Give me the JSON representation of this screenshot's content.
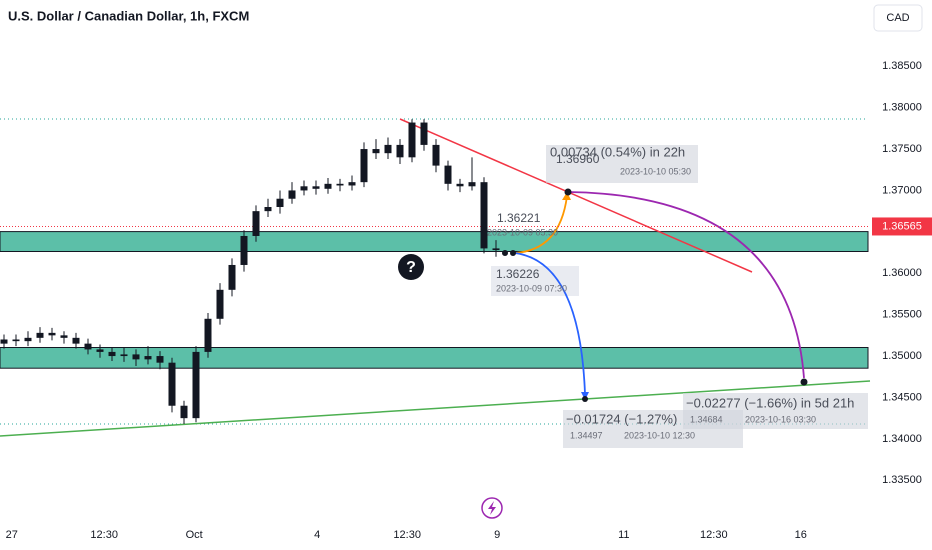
{
  "chart_data": {
    "type": "candlestick",
    "title": "U.S. Dollar / Canadian Dollar, 1h, FXCM",
    "currency": "CAD",
    "up_color": "#131722",
    "down_color": "#131722",
    "x": [
      0,
      2,
      4,
      6,
      8,
      10,
      12,
      14,
      16,
      18,
      20,
      22,
      24,
      26,
      28,
      30,
      32,
      34,
      36,
      38,
      40,
      42,
      44,
      46,
      48,
      50,
      52,
      54,
      56,
      58,
      60,
      62,
      64,
      66,
      68,
      70,
      72,
      74,
      76,
      78,
      80,
      82
    ],
    "open": [
      1.3515,
      1.352,
      1.3518,
      1.3522,
      1.3528,
      1.3525,
      1.3522,
      1.3515,
      1.3508,
      1.3505,
      1.35,
      1.3502,
      1.3496,
      1.35,
      1.3492,
      1.344,
      1.3425,
      1.3505,
      1.3545,
      1.358,
      1.361,
      1.3645,
      1.3675,
      1.368,
      1.369,
      1.37,
      1.3705,
      1.3702,
      1.3708,
      1.3706,
      1.371,
      1.375,
      1.3745,
      1.3755,
      1.374,
      1.3782,
      1.3755,
      1.373,
      1.3708,
      1.3705,
      1.371,
      1.363
    ],
    "high": [
      1.3526,
      1.3526,
      1.353,
      1.3535,
      1.3534,
      1.353,
      1.3528,
      1.3521,
      1.3514,
      1.3511,
      1.351,
      1.3508,
      1.3512,
      1.3506,
      1.3498,
      1.3446,
      1.3512,
      1.3552,
      1.3588,
      1.3618,
      1.3652,
      1.3682,
      1.369,
      1.37,
      1.371,
      1.3712,
      1.3712,
      1.3715,
      1.3714,
      1.3718,
      1.3758,
      1.3762,
      1.3764,
      1.3762,
      1.3786,
      1.3786,
      1.3762,
      1.3736,
      1.3714,
      1.374,
      1.3716,
      1.364
    ],
    "low": [
      1.3509,
      1.3512,
      1.3512,
      1.3516,
      1.3519,
      1.3515,
      1.3509,
      1.3502,
      1.3498,
      1.3494,
      1.3493,
      1.3488,
      1.349,
      1.3484,
      1.3432,
      1.3418,
      1.342,
      1.3498,
      1.3538,
      1.3572,
      1.3602,
      1.3638,
      1.3668,
      1.3672,
      1.3684,
      1.3694,
      1.3695,
      1.3696,
      1.3699,
      1.37,
      1.3704,
      1.3738,
      1.3738,
      1.3732,
      1.3734,
      1.3748,
      1.3722,
      1.37,
      1.3698,
      1.37,
      1.3624,
      1.362
    ],
    "close": [
      1.352,
      1.3518,
      1.3522,
      1.3528,
      1.3525,
      1.3522,
      1.3515,
      1.3508,
      1.3505,
      1.35,
      1.3502,
      1.3496,
      1.35,
      1.3492,
      1.344,
      1.3425,
      1.3505,
      1.3545,
      1.358,
      1.361,
      1.3645,
      1.3675,
      1.368,
      1.369,
      1.37,
      1.3705,
      1.3702,
      1.3708,
      1.3706,
      1.371,
      1.375,
      1.3745,
      1.3755,
      1.374,
      1.3782,
      1.3755,
      1.373,
      1.3708,
      1.3705,
      1.371,
      1.363,
      1.3628
    ],
    "xlim": [
      0,
      145
    ],
    "xticks": [
      {
        "value": 1.3,
        "label": "27"
      },
      {
        "value": 16.7,
        "label": "12:30"
      },
      {
        "value": 31.7,
        "label": "Oct"
      },
      {
        "value": 52.2,
        "label": "4"
      },
      {
        "value": 67.2,
        "label": "12:30"
      },
      {
        "value": 82.2,
        "label": "9"
      },
      {
        "value": 103.3,
        "label": "11"
      },
      {
        "value": 118.3,
        "label": "12:30"
      },
      {
        "value": 132.8,
        "label": "16"
      }
    ],
    "ylim": [
      1.3302,
      1.393
    ],
    "yticks": [
      {
        "value": 1.385,
        "label": "1.38500"
      },
      {
        "value": 1.38,
        "label": "1.38000"
      },
      {
        "value": 1.375,
        "label": "1.37500"
      },
      {
        "value": 1.37,
        "label": "1.37000"
      },
      {
        "value": 1.365,
        "label": "1.36500"
      },
      {
        "value": 1.36,
        "label": "1.36000"
      },
      {
        "value": 1.355,
        "label": "1.35500"
      },
      {
        "value": 1.35,
        "label": "1.35000"
      },
      {
        "value": 1.345,
        "label": "1.34500"
      },
      {
        "value": 1.34,
        "label": "1.34000"
      },
      {
        "value": 1.335,
        "label": "1.33500"
      }
    ],
    "last_price": {
      "value": 1.36565,
      "label": "1.36565"
    },
    "annotations": [
      "1.36221",
      "2023-10-09 05:30",
      "1.36226",
      "2023-10-09 07:30",
      "0.00734 (0.54%) in 22h",
      "1.36960",
      "2023-10-10 05:30",
      "−0.01724 (−1.27%)",
      "1.34497",
      "2023-10-10  12:30",
      "1.34684",
      "−0.02277 (−1.66%) in 5d 21h",
      "2023-10-16  03:30"
    ]
  }
}
